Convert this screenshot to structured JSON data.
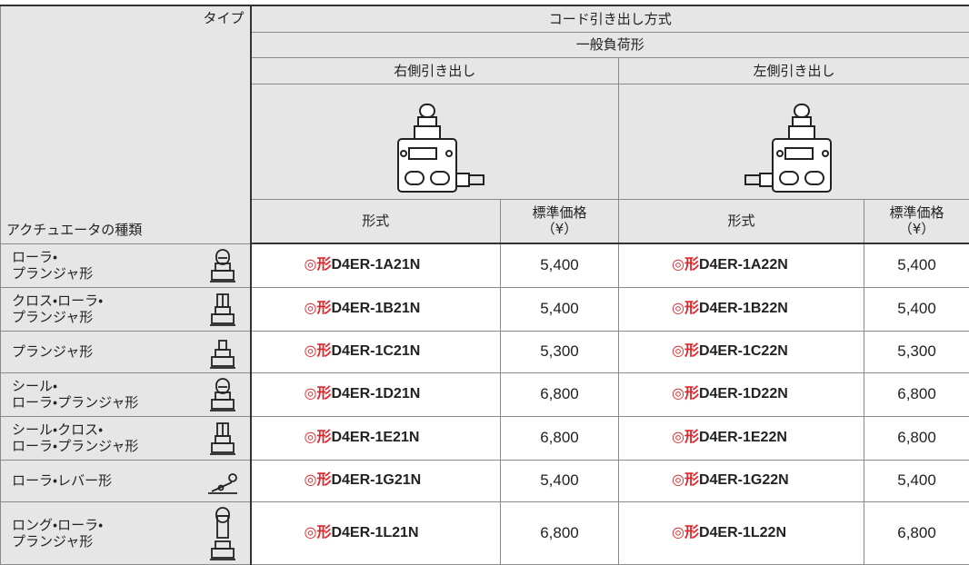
{
  "header": {
    "type_label": "タイプ",
    "actuator_label": "アクチュエータの種類",
    "cord": "コード引き出し方式",
    "load": "一般負荷形",
    "right": "右側引き出し",
    "left": "左側引き出し",
    "model_col": "形式",
    "price_col": "標準価格\n（¥）"
  },
  "model_prefix": "◎形",
  "rows": [
    {
      "actuator": "ローラ・\nプランジャ形",
      "right_model": "D4ER-1A21N",
      "right_price": "5,400",
      "left_model": "D4ER-1A22N",
      "left_price": "5,400"
    },
    {
      "actuator": "クロス・ローラ・\nプランジャ形",
      "right_model": "D4ER-1B21N",
      "right_price": "5,400",
      "left_model": "D4ER-1B22N",
      "left_price": "5,400"
    },
    {
      "actuator": "プランジャ形",
      "right_model": "D4ER-1C21N",
      "right_price": "5,300",
      "left_model": "D4ER-1C22N",
      "left_price": "5,300"
    },
    {
      "actuator": "シール・\nローラ・プランジャ形",
      "right_model": "D4ER-1D21N",
      "right_price": "6,800",
      "left_model": "D4ER-1D22N",
      "left_price": "6,800"
    },
    {
      "actuator": "シール・クロス・\nローラ・プランジャ形",
      "right_model": "D4ER-1E21N",
      "right_price": "6,800",
      "left_model": "D4ER-1E22N",
      "left_price": "6,800"
    },
    {
      "actuator": "ローラ・レバー形",
      "right_model": "D4ER-1G21N",
      "right_price": "5,400",
      "left_model": "D4ER-1G22N",
      "left_price": "5,400"
    },
    {
      "actuator": "ロング・ローラ・\nプランジャ形",
      "right_model": "D4ER-1L21N",
      "right_price": "6,800",
      "left_model": "D4ER-1L22N",
      "left_price": "6,800"
    }
  ]
}
